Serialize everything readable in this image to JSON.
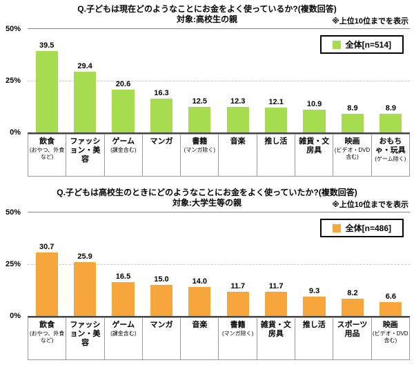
{
  "page": {
    "background": "#ffffff"
  },
  "chart_data": [
    {
      "type": "bar",
      "title": "Q.子どもは現在どのようなことにお金をよく使っているか?(複数回答)",
      "subtitle": "対象:高校生の親",
      "note": "※上位10位までを表示",
      "legend": {
        "label": "全体[n=514]",
        "color": "#a8dc50"
      },
      "ylim": [
        0,
        50
      ],
      "yticks": [
        "50%",
        "25%",
        "0%"
      ],
      "grid": "dashed line at 25%",
      "legend_position": "top-right",
      "bar_color": "#a8dc50",
      "categories": [
        "飲食",
        "ファッション・美容",
        "ゲーム",
        "マンガ",
        "書籍",
        "音楽",
        "推し活",
        "雑貨・文房具",
        "映画",
        "おもちゃ・玩具"
      ],
      "category_notes": [
        "(おやつ、外食など)",
        "",
        "(課金含む)",
        "",
        "(マンガ除く)",
        "",
        "",
        "",
        "(ビデオ・DVD含む)",
        "(ゲーム除く)"
      ],
      "values": [
        39.5,
        29.4,
        20.6,
        16.3,
        12.5,
        12.3,
        12.1,
        10.9,
        8.9,
        8.9
      ]
    },
    {
      "type": "bar",
      "title": "Q.子どもは高校生のときにどのようなことにお金をよく使っていたか?(複数回答)",
      "subtitle": "対象:大学生等の親",
      "note": "※上位10位までを表示",
      "legend": {
        "label": "全体[n=486]",
        "color": "#f7a63c"
      },
      "ylim": [
        0,
        50
      ],
      "yticks": [
        "50%",
        "25%",
        "0%"
      ],
      "grid": "dashed line at 25%",
      "legend_position": "top-right",
      "bar_color": "#f7a63c",
      "categories": [
        "飲食",
        "ファッション・美容",
        "ゲーム",
        "マンガ",
        "音楽",
        "書籍",
        "雑貨・文房具",
        "推し活",
        "スポーツ用品",
        "映画"
      ],
      "category_notes": [
        "(おやつ、外食など)",
        "",
        "(課金含む)",
        "",
        "",
        "(マンガ除く)",
        "",
        "",
        "",
        "(ビデオ・DVD含む)"
      ],
      "values": [
        30.7,
        25.9,
        16.5,
        15.0,
        14.0,
        11.7,
        11.7,
        9.3,
        8.2,
        6.6
      ]
    }
  ]
}
